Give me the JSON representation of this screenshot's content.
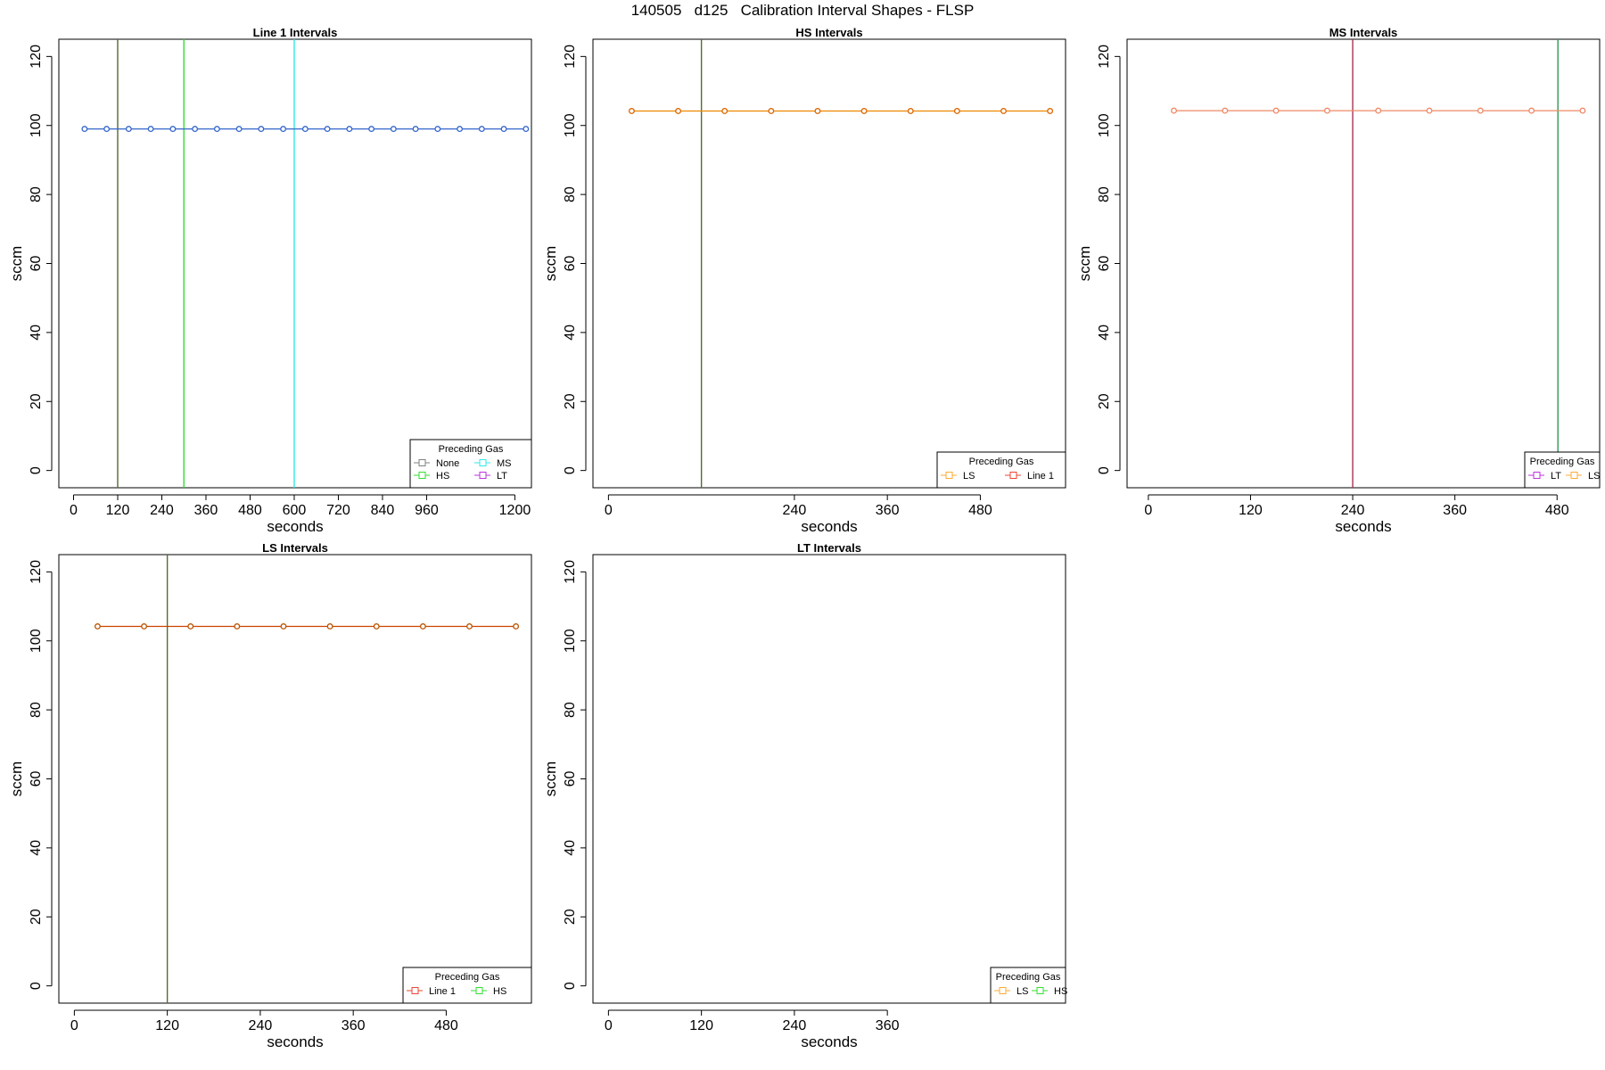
{
  "page_title": "140505   d125   Calibration Interval Shapes - FLSP",
  "colors": {
    "None": "#808080",
    "HS": "#33dd33",
    "MS": "#33e8e8",
    "LT": "#bb33dd",
    "LS": "#ffaa33",
    "Line 1": "#ee4433",
    "marker_default": "#3366cc"
  },
  "chart_data": [
    {
      "type": "line",
      "title": "Line 1 Intervals",
      "xlabel": "seconds",
      "ylabel": "sccm",
      "xlim": [
        -40,
        1245
      ],
      "ylim": [
        -5,
        125
      ],
      "xticks": [
        0,
        120,
        240,
        360,
        480,
        600,
        720,
        840,
        960,
        1200
      ],
      "yticks": [
        0,
        20,
        40,
        60,
        80,
        100,
        120
      ],
      "grid": false,
      "legend": {
        "title": "Preceding Gas",
        "position": "bottom-right",
        "columns": 2,
        "entries": [
          "None",
          "MS",
          "HS",
          "LT"
        ]
      },
      "vlines": [
        {
          "x": 120,
          "color": "#556b2f"
        },
        {
          "x": 300,
          "color": "#33dd33"
        },
        {
          "x": 600,
          "color": "#33e8e8"
        }
      ],
      "series": [
        {
          "color": "#3366cc",
          "marker_color": "#3366cc",
          "x": [
            30,
            90,
            150,
            210,
            270,
            330,
            390,
            450,
            510,
            570,
            630,
            690,
            750,
            810,
            870,
            930,
            990,
            1050,
            1110,
            1170,
            1230
          ],
          "y": [
            99,
            99,
            99,
            99,
            99,
            99,
            99,
            99,
            99,
            99,
            99,
            99,
            99,
            99,
            99,
            99,
            99,
            99,
            99,
            99,
            99
          ]
        }
      ]
    },
    {
      "type": "line",
      "title": "HS Intervals",
      "xlabel": "seconds",
      "ylabel": "sccm",
      "xlim": [
        -20,
        590
      ],
      "ylim": [
        -5,
        125
      ],
      "xticks": [
        0,
        240,
        360,
        480
      ],
      "yticks": [
        0,
        20,
        40,
        60,
        80,
        100,
        120
      ],
      "grid": false,
      "legend": {
        "title": "Preceding Gas",
        "position": "bottom-right",
        "columns": 2,
        "entries": [
          "LS",
          "Line 1"
        ]
      },
      "vlines": [
        {
          "x": 120,
          "color": "#556b2f"
        }
      ],
      "series": [
        {
          "color": "#ee8800",
          "marker_color": "#dd6600",
          "x": [
            30,
            90,
            150,
            210,
            270,
            330,
            390,
            450,
            510,
            570
          ],
          "y": [
            104.2,
            104.2,
            104.2,
            104.2,
            104.2,
            104.2,
            104.2,
            104.2,
            104.2,
            104.2
          ]
        }
      ]
    },
    {
      "type": "line",
      "title": "MS Intervals",
      "xlabel": "seconds",
      "ylabel": "sccm",
      "xlim": [
        -25,
        530
      ],
      "ylim": [
        -5,
        125
      ],
      "xticks": [
        0,
        120,
        240,
        360,
        480
      ],
      "yticks": [
        0,
        20,
        40,
        60,
        80,
        100,
        120
      ],
      "grid": false,
      "legend": {
        "title": "Preceding Gas",
        "position": "bottom-right",
        "columns": 2,
        "entries": [
          "LT",
          "LS"
        ]
      },
      "vlines": [
        {
          "x": 240,
          "color": "#aa3355"
        },
        {
          "x": 481,
          "color": "#339955"
        }
      ],
      "series": [
        {
          "color": "#ee8866",
          "marker_color": "#ee8866",
          "x": [
            30,
            90,
            150,
            210,
            270,
            330,
            390,
            450,
            510
          ],
          "y": [
            104.3,
            104.3,
            104.3,
            104.3,
            104.3,
            104.3,
            104.3,
            104.3,
            104.3
          ]
        }
      ]
    },
    {
      "type": "line",
      "title": "LS Intervals",
      "xlabel": "seconds",
      "ylabel": "sccm",
      "xlim": [
        -20,
        590
      ],
      "ylim": [
        -5,
        125
      ],
      "xticks": [
        0,
        120,
        240,
        360,
        480
      ],
      "yticks": [
        0,
        20,
        40,
        60,
        80,
        100,
        120
      ],
      "grid": false,
      "legend": {
        "title": "Preceding Gas",
        "position": "bottom-right",
        "columns": 2,
        "entries": [
          "Line 1",
          "HS"
        ]
      },
      "vlines": [
        {
          "x": 120,
          "color": "#556b2f"
        }
      ],
      "series": [
        {
          "color": "#cc4400",
          "marker_color": "#bb5500",
          "x": [
            30,
            90,
            150,
            210,
            270,
            330,
            390,
            450,
            510,
            570
          ],
          "y": [
            104.2,
            104.2,
            104.2,
            104.2,
            104.2,
            104.2,
            104.2,
            104.2,
            104.2,
            104.2
          ]
        }
      ]
    },
    {
      "type": "line",
      "title": "LT Intervals",
      "xlabel": "seconds",
      "ylabel": "sccm",
      "xlim": [
        -20,
        590
      ],
      "ylim": [
        -5,
        125
      ],
      "xticks": [
        0,
        120,
        240,
        360
      ],
      "yticks": [
        0,
        20,
        40,
        60,
        80,
        100,
        120
      ],
      "grid": false,
      "legend": {
        "title": "Preceding Gas",
        "position": "bottom-right",
        "columns": 2,
        "entries": [
          "LS",
          "HS"
        ]
      },
      "vlines": [],
      "series": []
    }
  ]
}
